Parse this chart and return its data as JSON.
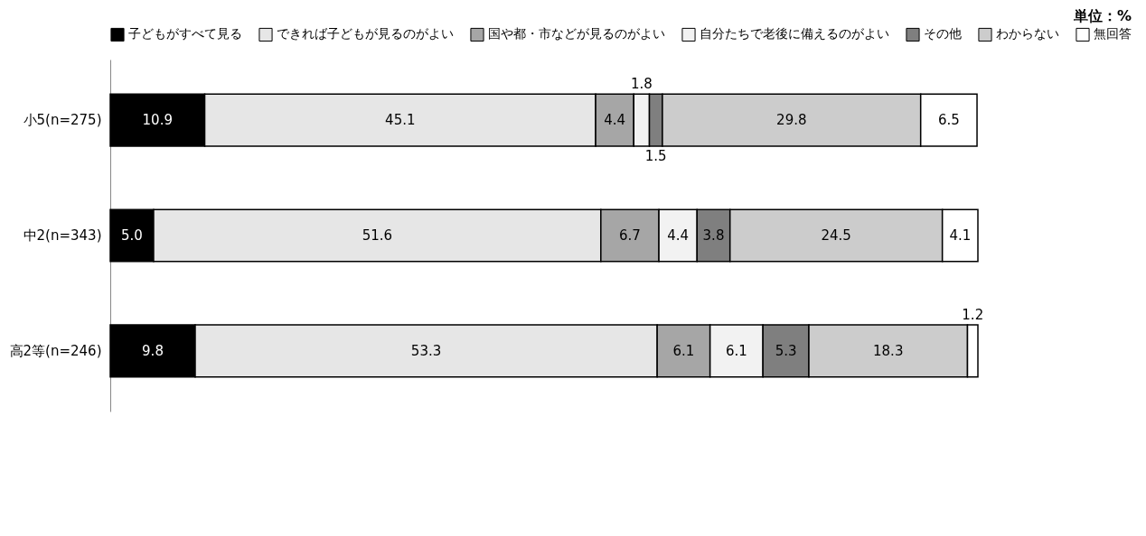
{
  "chart_data": {
    "type": "bar",
    "orientation": "horizontal",
    "stacked": true,
    "tick_labels": "y",
    "legend": "top",
    "annotations": [
      "単位：%"
    ],
    "categories": [
      "小5(n=275)",
      "中2(n=343)",
      "高2等(n=246)"
    ],
    "series": [
      {
        "name": "子どもがすべて見る",
        "color": "#000000",
        "values": [
          10.9,
          5.0,
          9.8
        ],
        "value_labels": [
          "10.9",
          "5.0",
          "9.8"
        ]
      },
      {
        "name": "できれば子どもが見るのがよい",
        "color": "#e6e6e6",
        "values": [
          45.1,
          51.6,
          53.3
        ],
        "value_labels": [
          "45.1",
          "51.6",
          "53.3"
        ]
      },
      {
        "name": "国や都・市などが見るのがよい",
        "color": "#a6a6a6",
        "values": [
          4.4,
          6.7,
          6.1
        ],
        "value_labels": [
          "4.4",
          "6.7",
          "6.1"
        ]
      },
      {
        "name": "自分たちで老後に備えるのがよい",
        "color": "#f2f2f2",
        "values": [
          1.8,
          4.4,
          6.1
        ],
        "value_labels": [
          "1.8",
          "4.4",
          "6.1"
        ]
      },
      {
        "name": "その他",
        "color": "#7f7f7f",
        "values": [
          1.5,
          3.8,
          5.3
        ],
        "value_labels": [
          "1.5",
          "3.8",
          "5.3"
        ]
      },
      {
        "name": "わからない",
        "color": "#cccccc",
        "values": [
          29.8,
          24.5,
          18.3
        ],
        "value_labels": [
          "29.8",
          "24.5",
          "18.3"
        ]
      },
      {
        "name": "無回答",
        "color": "#ffffff",
        "values": [
          6.5,
          4.1,
          1.2
        ],
        "value_labels": [
          "6.5",
          "4.1",
          "1.2"
        ]
      }
    ]
  }
}
